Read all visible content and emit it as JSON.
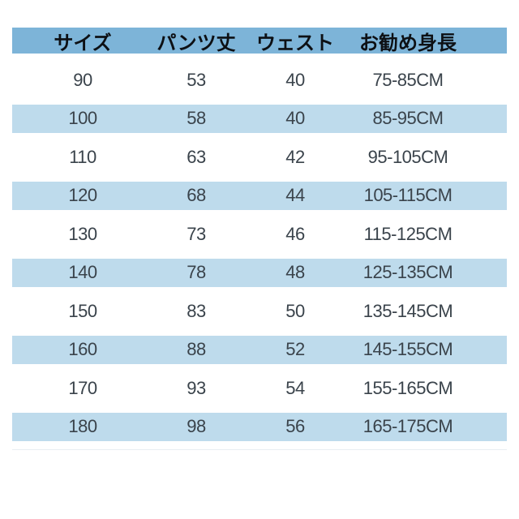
{
  "chart_data": {
    "type": "table",
    "columns": [
      "サイズ",
      "パンツ丈",
      "ウェスト",
      "お勧め身長"
    ],
    "rows": [
      [
        "90",
        "53",
        "40",
        "75-85CM"
      ],
      [
        "100",
        "58",
        "40",
        "85-95CM"
      ],
      [
        "110",
        "63",
        "42",
        "95-105CM"
      ],
      [
        "120",
        "68",
        "44",
        "105-115CM"
      ],
      [
        "130",
        "73",
        "46",
        "115-125CM"
      ],
      [
        "140",
        "78",
        "48",
        "125-135CM"
      ],
      [
        "150",
        "83",
        "50",
        "135-145CM"
      ],
      [
        "160",
        "88",
        "52",
        "145-155CM"
      ],
      [
        "170",
        "93",
        "54",
        "155-165CM"
      ],
      [
        "180",
        "98",
        "56",
        "165-175CM"
      ]
    ],
    "layout": {
      "header_position": "top",
      "striped": true,
      "striped_row_values": [
        "100",
        "120",
        "140",
        "160",
        "180"
      ],
      "grid": false,
      "alignment": "center"
    }
  },
  "colors": {
    "page_bg": "#ffffff",
    "header_bg": "#7db4d8",
    "stripe_bg": "#bedbec",
    "header_text": "#0d1014",
    "body_text": "#3a434b"
  }
}
